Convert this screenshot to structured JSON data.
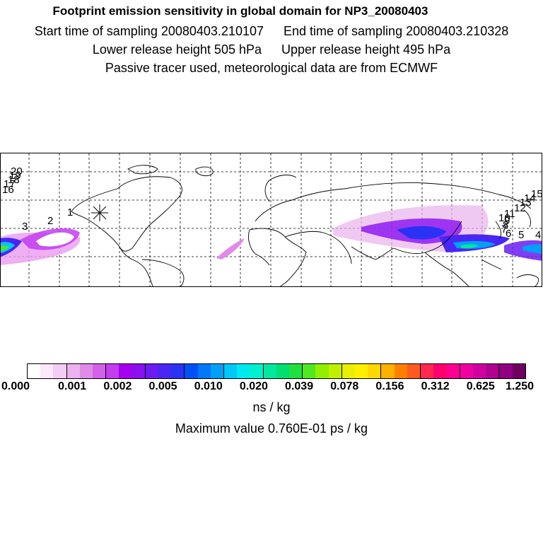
{
  "header": {
    "title": "Footprint emission sensitivity in global domain for NP3_20080403",
    "start_label": "Start time of sampling 20080403.210107",
    "end_label": "End time of sampling 20080403.210328",
    "lower_label": "Lower release height  505 hPa",
    "upper_label": "Upper release height  495 hPa",
    "info": "Passive tracer used, meteorological data are from ECMWF"
  },
  "map": {
    "day_labels": [
      "1",
      "2",
      "3",
      "4",
      "5",
      "6",
      "7",
      "8",
      "9",
      "10",
      "11",
      "12",
      "13",
      "14",
      "15",
      "16",
      "17",
      "18",
      "19",
      "20"
    ]
  },
  "colorbar": {
    "ticks": [
      "0.000",
      "0.001",
      "0.002",
      "0.005",
      "0.010",
      "0.020",
      "0.039",
      "0.078",
      "0.156",
      "0.312",
      "0.625",
      "1.250"
    ],
    "colors": [
      "#ffffff",
      "#fbe8fb",
      "#f3cdf3",
      "#eab2ee",
      "#e08be8",
      "#d462e8",
      "#c23ef0",
      "#a500f0",
      "#8a10f0",
      "#6a1cf2",
      "#4a26f4",
      "#2a32f6",
      "#0050f8",
      "#0078f8",
      "#00a0f8",
      "#00c8f8",
      "#00e8f0",
      "#00f0d0",
      "#00e8a0",
      "#00e070",
      "#20e040",
      "#50e820",
      "#90f000",
      "#c0f000",
      "#e8f000",
      "#fff000",
      "#ffd800",
      "#ffb000",
      "#ff8000",
      "#ff5a20",
      "#ff2850",
      "#ff0070",
      "#ff0090",
      "#f000a0",
      "#d000a0",
      "#b00090",
      "#900080",
      "#700060"
    ],
    "unit": "ns / kg",
    "max_value": "Maximum value  0.760E-01 ps / kg"
  }
}
